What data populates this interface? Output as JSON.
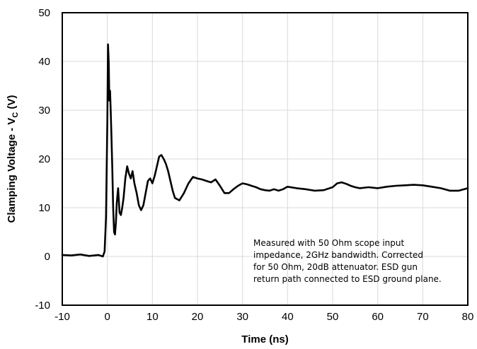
{
  "chart_data": {
    "type": "line",
    "xlabel": "Time (ns)",
    "ylabel_main": "Clamping Voltage - V",
    "ylabel_sub": "C",
    "ylabel_unit": " (V)",
    "xlim": [
      -10,
      80
    ],
    "ylim": [
      -10,
      50
    ],
    "xticks": [
      -10,
      0,
      10,
      20,
      30,
      40,
      50,
      60,
      70,
      80
    ],
    "yticks": [
      -10,
      0,
      10,
      20,
      30,
      40,
      50
    ],
    "grid": true,
    "annotation": [
      "Measured with 50 Ohm scope input",
      "impedance, 2GHz bandwidth. Corrected",
      "for 50 Ohm, 20dB attenuator. ESD gun",
      "return path connected to ESD ground plane."
    ],
    "series": [
      {
        "color": "#000000",
        "x": [
          -10,
          -8,
          -6,
          -4,
          -2,
          -1,
          -0.6,
          -0.3,
          0,
          0.15,
          0.3,
          0.45,
          0.6,
          0.75,
          0.9,
          1.1,
          1.3,
          1.5,
          1.7,
          1.9,
          2.1,
          2.4,
          2.7,
          3.0,
          3.3,
          3.6,
          4.0,
          4.4,
          4.8,
          5.2,
          5.6,
          6.0,
          6.5,
          7.0,
          7.5,
          8.0,
          8.5,
          9.0,
          9.5,
          10.0,
          10.5,
          11.0,
          11.5,
          12.0,
          12.5,
          13.0,
          13.5,
          14.0,
          14.5,
          15.0,
          16.0,
          17.0,
          18.0,
          19.0,
          20.0,
          21.0,
          22.0,
          23.0,
          24.0,
          25.0,
          26.0,
          27.0,
          28.0,
          29.0,
          30.0,
          31.0,
          32.0,
          33.0,
          34.0,
          35.0,
          36.0,
          37.0,
          38.0,
          39.0,
          40.0,
          42.0,
          44.0,
          46.0,
          48.0,
          50.0,
          51.0,
          52.0,
          53.0,
          54.0,
          55.0,
          56.0,
          58.0,
          60.0,
          62.0,
          64.0,
          66.0,
          68.0,
          70.0,
          72.0,
          74.0,
          76.0,
          78.0,
          80.0
        ],
        "values": [
          0.3,
          0.2,
          0.4,
          0.1,
          0.3,
          0.0,
          1.0,
          8.0,
          28.0,
          43.5,
          40.0,
          32.0,
          34.0,
          30.0,
          25.0,
          18.0,
          10.0,
          5.0,
          4.5,
          7.0,
          11.0,
          14.0,
          9.0,
          8.5,
          10.0,
          12.0,
          16.0,
          18.5,
          17.0,
          16.0,
          17.5,
          15.0,
          13.0,
          10.5,
          9.5,
          10.5,
          13.0,
          15.5,
          16.0,
          15.0,
          16.5,
          18.5,
          20.5,
          20.8,
          20.0,
          19.0,
          17.5,
          15.5,
          13.5,
          12.0,
          11.5,
          13.0,
          15.0,
          16.3,
          16.0,
          15.8,
          15.5,
          15.2,
          15.8,
          14.5,
          13.0,
          13.0,
          13.8,
          14.5,
          15.0,
          14.8,
          14.5,
          14.2,
          13.8,
          13.6,
          13.5,
          13.8,
          13.5,
          13.8,
          14.3,
          14.0,
          13.8,
          13.5,
          13.6,
          14.2,
          15.0,
          15.2,
          14.9,
          14.5,
          14.2,
          14.0,
          14.2,
          14.0,
          14.3,
          14.5,
          14.6,
          14.7,
          14.6,
          14.3,
          14.0,
          13.5,
          13.5,
          14.0
        ]
      }
    ]
  }
}
